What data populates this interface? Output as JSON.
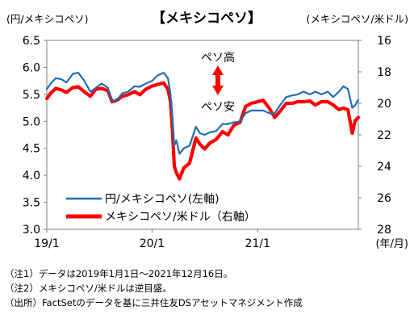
{
  "chart_data": {
    "type": "line",
    "title": "【メキシコペソ】",
    "left_axis_title": "(円/メキシコペソ)",
    "right_axis_title": "(メキシコペソ/米ドル)",
    "x_unit_label": "(年/月)",
    "x_ticks": [
      {
        "date": "2019-01-01",
        "label": "19/1"
      },
      {
        "date": "2020-01-01",
        "label": "20/1"
      },
      {
        "date": "2021-01-01",
        "label": "21/1"
      }
    ],
    "xlim": [
      "2019-01-01",
      "2021-12-16"
    ],
    "y_left": {
      "min": 3.0,
      "max": 6.5,
      "ticks": [
        "3.0",
        "3.5",
        "4.0",
        "4.5",
        "5.0",
        "5.5",
        "6.0",
        "6.5"
      ]
    },
    "y_right": {
      "min": 16,
      "max": 28,
      "inverted": true,
      "ticks": [
        "16",
        "18",
        "20",
        "22",
        "24",
        "26",
        "28"
      ]
    },
    "grid": false,
    "legend_position": "bottom-left",
    "annotation": {
      "top": "ペソ高",
      "bottom": "ペソ安",
      "arrow_color": "#ff0000"
    },
    "series": [
      {
        "name": "円/メキシコペソ(左軸)",
        "axis": "left",
        "color": "#1f6fb5",
        "points": [
          [
            "2019-01-01",
            5.6
          ],
          [
            "2019-01-15",
            5.7
          ],
          [
            "2019-02-01",
            5.8
          ],
          [
            "2019-02-20",
            5.78
          ],
          [
            "2019-03-10",
            5.72
          ],
          [
            "2019-04-01",
            5.88
          ],
          [
            "2019-04-20",
            5.9
          ],
          [
            "2019-05-10",
            5.76
          ],
          [
            "2019-06-01",
            5.55
          ],
          [
            "2019-06-20",
            5.62
          ],
          [
            "2019-07-10",
            5.7
          ],
          [
            "2019-08-01",
            5.62
          ],
          [
            "2019-08-15",
            5.38
          ],
          [
            "2019-09-01",
            5.4
          ],
          [
            "2019-09-20",
            5.52
          ],
          [
            "2019-10-10",
            5.55
          ],
          [
            "2019-11-01",
            5.65
          ],
          [
            "2019-11-20",
            5.64
          ],
          [
            "2019-12-10",
            5.7
          ],
          [
            "2020-01-01",
            5.75
          ],
          [
            "2020-01-20",
            5.85
          ],
          [
            "2020-02-10",
            5.9
          ],
          [
            "2020-02-25",
            5.8
          ],
          [
            "2020-03-05",
            5.5
          ],
          [
            "2020-03-12",
            5.05
          ],
          [
            "2020-03-18",
            4.55
          ],
          [
            "2020-03-25",
            4.65
          ],
          [
            "2020-04-05",
            4.4
          ],
          [
            "2020-04-20",
            4.5
          ],
          [
            "2020-05-10",
            4.55
          ],
          [
            "2020-06-01",
            4.9
          ],
          [
            "2020-06-15",
            4.78
          ],
          [
            "2020-07-01",
            4.75
          ],
          [
            "2020-07-20",
            4.8
          ],
          [
            "2020-08-10",
            4.82
          ],
          [
            "2020-09-01",
            4.95
          ],
          [
            "2020-09-20",
            4.95
          ],
          [
            "2020-10-10",
            4.98
          ],
          [
            "2020-11-01",
            5.0
          ],
          [
            "2020-11-20",
            5.15
          ],
          [
            "2020-12-10",
            5.2
          ],
          [
            "2021-01-01",
            5.2
          ],
          [
            "2021-01-20",
            5.2
          ],
          [
            "2021-02-10",
            5.15
          ],
          [
            "2021-03-01",
            5.15
          ],
          [
            "2021-03-20",
            5.3
          ],
          [
            "2021-04-10",
            5.45
          ],
          [
            "2021-05-01",
            5.48
          ],
          [
            "2021-05-20",
            5.5
          ],
          [
            "2021-06-10",
            5.55
          ],
          [
            "2021-07-01",
            5.5
          ],
          [
            "2021-07-20",
            5.55
          ],
          [
            "2021-08-10",
            5.5
          ],
          [
            "2021-09-01",
            5.55
          ],
          [
            "2021-09-20",
            5.45
          ],
          [
            "2021-10-10",
            5.55
          ],
          [
            "2021-10-25",
            5.65
          ],
          [
            "2021-11-10",
            5.6
          ],
          [
            "2021-11-25",
            5.25
          ],
          [
            "2021-12-05",
            5.3
          ],
          [
            "2021-12-16",
            5.4
          ]
        ]
      },
      {
        "name": "メキシコペソ/米ドル（右軸）",
        "axis": "right",
        "color": "#ff0000",
        "points": [
          [
            "2019-01-01",
            19.7
          ],
          [
            "2019-01-15",
            19.35
          ],
          [
            "2019-02-01",
            19.05
          ],
          [
            "2019-02-20",
            19.15
          ],
          [
            "2019-03-10",
            19.3
          ],
          [
            "2019-04-01",
            19.0
          ],
          [
            "2019-04-20",
            18.95
          ],
          [
            "2019-05-10",
            19.25
          ],
          [
            "2019-06-01",
            19.55
          ],
          [
            "2019-06-20",
            19.1
          ],
          [
            "2019-07-10",
            19.05
          ],
          [
            "2019-08-01",
            19.2
          ],
          [
            "2019-08-15",
            19.9
          ],
          [
            "2019-09-01",
            19.8
          ],
          [
            "2019-09-20",
            19.55
          ],
          [
            "2019-10-10",
            19.45
          ],
          [
            "2019-11-01",
            19.25
          ],
          [
            "2019-11-20",
            19.45
          ],
          [
            "2019-12-10",
            19.1
          ],
          [
            "2020-01-01",
            18.9
          ],
          [
            "2020-01-20",
            18.8
          ],
          [
            "2020-02-10",
            18.7
          ],
          [
            "2020-02-25",
            19.1
          ],
          [
            "2020-03-05",
            19.9
          ],
          [
            "2020-03-12",
            21.8
          ],
          [
            "2020-03-18",
            24.0
          ],
          [
            "2020-03-25",
            24.4
          ],
          [
            "2020-04-05",
            24.8
          ],
          [
            "2020-04-20",
            24.1
          ],
          [
            "2020-05-10",
            23.8
          ],
          [
            "2020-06-01",
            22.2
          ],
          [
            "2020-06-15",
            22.6
          ],
          [
            "2020-07-01",
            22.9
          ],
          [
            "2020-07-20",
            22.5
          ],
          [
            "2020-08-10",
            22.3
          ],
          [
            "2020-09-01",
            21.8
          ],
          [
            "2020-09-20",
            22.0
          ],
          [
            "2020-10-10",
            21.4
          ],
          [
            "2020-11-01",
            21.2
          ],
          [
            "2020-11-20",
            20.2
          ],
          [
            "2020-12-10",
            20.0
          ],
          [
            "2021-01-01",
            19.9
          ],
          [
            "2021-01-20",
            19.8
          ],
          [
            "2021-02-10",
            20.3
          ],
          [
            "2021-03-01",
            20.9
          ],
          [
            "2021-03-20",
            20.5
          ],
          [
            "2021-04-10",
            20.0
          ],
          [
            "2021-05-01",
            20.0
          ],
          [
            "2021-05-20",
            19.9
          ],
          [
            "2021-06-10",
            19.9
          ],
          [
            "2021-07-01",
            19.85
          ],
          [
            "2021-07-20",
            20.1
          ],
          [
            "2021-08-10",
            19.9
          ],
          [
            "2021-09-01",
            19.9
          ],
          [
            "2021-09-20",
            20.1
          ],
          [
            "2021-10-10",
            20.4
          ],
          [
            "2021-10-25",
            20.3
          ],
          [
            "2021-11-10",
            20.4
          ],
          [
            "2021-11-25",
            21.9
          ],
          [
            "2021-12-05",
            21.1
          ],
          [
            "2021-12-16",
            20.9
          ]
        ]
      }
    ]
  },
  "notes": [
    "（注1）データは2019年1月1日～2021年12月16日。",
    "（注2）メキシコペソ/米ドルは逆目盛。",
    "（出所）FactSetのデータを基に三井住友DSアセットマネジメント作成"
  ]
}
